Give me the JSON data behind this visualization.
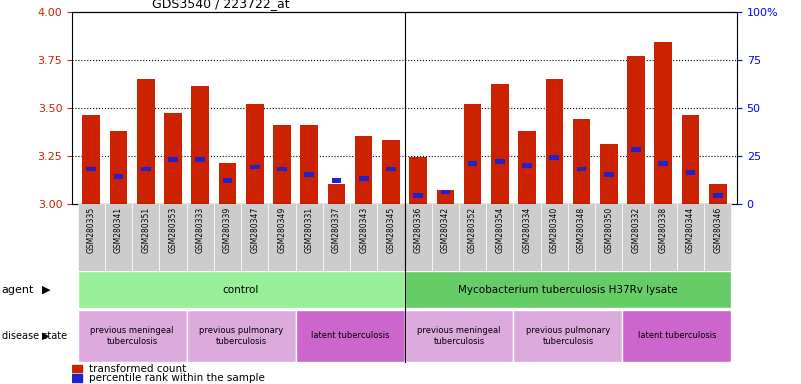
{
  "title": "GDS3540 / 223722_at",
  "samples": [
    "GSM280335",
    "GSM280341",
    "GSM280351",
    "GSM280353",
    "GSM280333",
    "GSM280339",
    "GSM280347",
    "GSM280349",
    "GSM280331",
    "GSM280337",
    "GSM280343",
    "GSM280345",
    "GSM280336",
    "GSM280342",
    "GSM280352",
    "GSM280354",
    "GSM280334",
    "GSM280340",
    "GSM280348",
    "GSM280350",
    "GSM280332",
    "GSM280338",
    "GSM280344",
    "GSM280346"
  ],
  "red_values": [
    3.46,
    3.38,
    3.65,
    3.47,
    3.61,
    3.21,
    3.52,
    3.41,
    3.41,
    3.1,
    3.35,
    3.33,
    3.24,
    3.07,
    3.52,
    3.62,
    3.38,
    3.65,
    3.44,
    3.31,
    3.77,
    3.84,
    3.46,
    3.1
  ],
  "blue_values_pct": [
    18,
    14,
    18,
    23,
    23,
    12,
    19,
    18,
    15,
    12,
    13,
    18,
    4,
    6,
    21,
    22,
    20,
    24,
    18,
    15,
    28,
    21,
    16,
    4
  ],
  "ylim_left": [
    3.0,
    4.0
  ],
  "ylim_right": [
    0,
    100
  ],
  "yticks_left": [
    3.0,
    3.25,
    3.5,
    3.75,
    4.0
  ],
  "yticks_right": [
    0,
    25,
    50,
    75,
    100
  ],
  "bar_color_red": "#cc2200",
  "bar_color_blue": "#2222cc",
  "agent_groups": [
    {
      "label": "control",
      "start": 0,
      "end": 11,
      "color": "#99ee99"
    },
    {
      "label": "Mycobacterium tuberculosis H37Rv lysate",
      "start": 12,
      "end": 23,
      "color": "#66cc66"
    }
  ],
  "disease_groups": [
    {
      "label": "previous meningeal\ntuberculosis",
      "start": 0,
      "end": 3,
      "color": "#ddaadd"
    },
    {
      "label": "previous pulmonary\ntuberculosis",
      "start": 4,
      "end": 7,
      "color": "#ddaadd"
    },
    {
      "label": "latent tuberculosis",
      "start": 8,
      "end": 11,
      "color": "#cc66cc"
    },
    {
      "label": "previous meningeal\ntuberculosis",
      "start": 12,
      "end": 15,
      "color": "#ddaadd"
    },
    {
      "label": "previous pulmonary\ntuberculosis",
      "start": 16,
      "end": 19,
      "color": "#ddaadd"
    },
    {
      "label": "latent tuberculosis",
      "start": 20,
      "end": 23,
      "color": "#cc66cc"
    }
  ],
  "legend_items": [
    {
      "label": "transformed count",
      "color": "#cc2200"
    },
    {
      "label": "percentile rank within the sample",
      "color": "#2222cc"
    }
  ],
  "fig_width": 8.01,
  "fig_height": 3.84,
  "dpi": 100
}
